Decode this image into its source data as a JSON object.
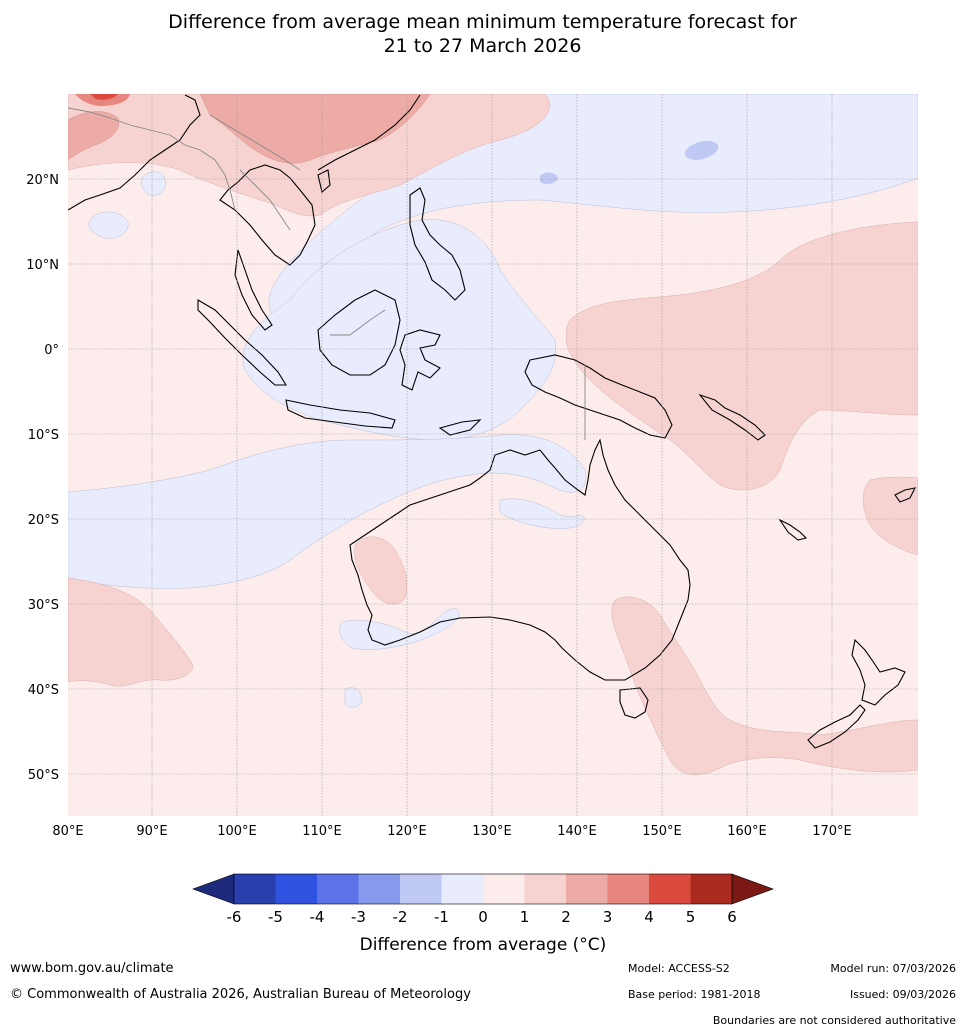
{
  "title_line1": "Difference from average mean minimum temperature forecast for",
  "title_line2": "21 to 27 March 2026",
  "lat_labels": [
    "20°N",
    "10°N",
    "0°",
    "10°S",
    "20°S",
    "30°S",
    "40°S",
    "50°S"
  ],
  "lon_labels": [
    "80°E",
    "90°E",
    "100°E",
    "110°E",
    "120°E",
    "130°E",
    "140°E",
    "150°E",
    "160°E",
    "170°E"
  ],
  "colorbar": {
    "ticks": [
      "-6",
      "-5",
      "-4",
      "-3",
      "-2",
      "-1",
      "0",
      "1",
      "2",
      "3",
      "4",
      "5",
      "6"
    ],
    "colors": [
      "#1e2b7c",
      "#2a3fae",
      "#3052e0",
      "#5b73e6",
      "#8799ec",
      "#c0c9f4",
      "#e8ecfc",
      "#fceceb",
      "#f6d3d1",
      "#edaba6",
      "#e6867f",
      "#dc4a3d",
      "#ab2a20",
      "#7b1a14"
    ],
    "label": "Difference from average (°C)"
  },
  "colors": {
    "near_zero_warm": "#fceceb",
    "near_zero_cool": "#e8ecfc",
    "warm_1_2": "#f6d3d1",
    "warm_2_3": "#edaba6",
    "warm_3_4": "#e6867f",
    "warm_4_5": "#dc4a3d",
    "cool_1_2": "#c0c9f4",
    "grid": "#999999",
    "coast": "#000000",
    "border": "#888888"
  },
  "footer": {
    "website": "www.bom.gov.au/climate",
    "copyright": "© Commonwealth of Australia 2026, Australian Bureau of Meteorology",
    "model": "Model: ACCESS-S2",
    "base_period": "Base period: 1981-2018",
    "model_run": "Model run: 07/03/2026",
    "issued": "Issued: 09/03/2026",
    "disclaimer": "Boundaries are not considered authoritative"
  }
}
